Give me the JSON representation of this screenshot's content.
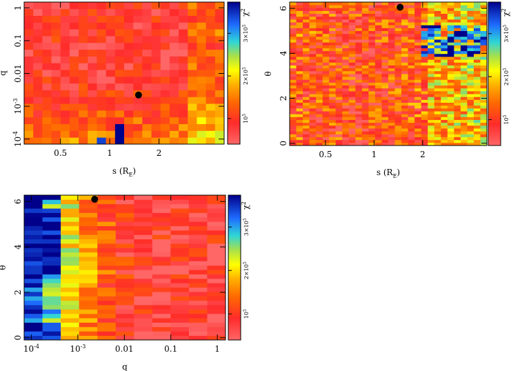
{
  "chart_data": [
    {
      "type": "heatmap",
      "id": "s-q",
      "xlabel": "s (R",
      "xlabel_sub": "E",
      "xlabel_close": ")",
      "ylabel": "q",
      "x_scale": "log",
      "y_scale": "log",
      "xlim": [
        0.3,
        5.0
      ],
      "ylim": [
        7e-05,
        1.5
      ],
      "x_ticks": [
        {
          "v": 0.5,
          "label": "0.5"
        },
        {
          "v": 1,
          "label": "1"
        },
        {
          "v": 2,
          "label": "2"
        }
      ],
      "y_ticks": [
        {
          "v": 1,
          "label": "1"
        },
        {
          "v": 0.1,
          "label": "0.1"
        },
        {
          "v": 0.01,
          "label": "0.01"
        },
        {
          "v": 0.001,
          "label": "10",
          "sup": "-3"
        },
        {
          "v": 0.0001,
          "label": "10",
          "sup": "-4"
        }
      ],
      "grid": {
        "nx": 22,
        "ny": 21
      },
      "best_fit": {
        "x": 1.5,
        "y": 0.0022
      },
      "seed": 11,
      "colorbar": {
        "title": "χ",
        "title_sup": "2",
        "ticks": [
          {
            "label": "10",
            "sup": "5"
          },
          {
            "label": "2×10",
            "sup": "5"
          },
          {
            "label": "3×10",
            "sup": "5"
          }
        ]
      }
    },
    {
      "type": "heatmap",
      "id": "s-theta",
      "xlabel": "s (R",
      "xlabel_sub": "E",
      "xlabel_close": ")",
      "ylabel": "θ",
      "x_scale": "log",
      "y_scale": "linear",
      "xlim": [
        0.3,
        5.0
      ],
      "ylim": [
        -0.1,
        6.28
      ],
      "x_ticks": [
        {
          "v": 0.5,
          "label": "0.5"
        },
        {
          "v": 1,
          "label": "1"
        },
        {
          "v": 2,
          "label": "2"
        }
      ],
      "y_ticks": [
        {
          "v": 0,
          "label": "0"
        },
        {
          "v": 2,
          "label": "2"
        },
        {
          "v": 4,
          "label": "4"
        },
        {
          "v": 6,
          "label": "6"
        }
      ],
      "grid": {
        "nx": 30,
        "ny": 50
      },
      "best_fit": {
        "x": 1.45,
        "y": 6.05
      },
      "seed": 27,
      "colorbar": {
        "title": "χ",
        "title_sup": "2",
        "ticks": [
          {
            "label": "10",
            "sup": "5"
          },
          {
            "label": "2×10",
            "sup": "5"
          },
          {
            "label": "3×10",
            "sup": "5"
          }
        ]
      }
    },
    {
      "type": "heatmap",
      "id": "q-theta",
      "xlabel": "q",
      "xlabel_sub": "",
      "xlabel_close": "",
      "ylabel": "θ",
      "x_scale": "log",
      "y_scale": "linear",
      "xlim": [
        7e-05,
        1.5
      ],
      "ylim": [
        -0.1,
        6.28
      ],
      "x_ticks": [
        {
          "v": 0.0001,
          "label": "10",
          "sup": "-4"
        },
        {
          "v": 0.001,
          "label": "10",
          "sup": "-3"
        },
        {
          "v": 0.01,
          "label": "0.01"
        },
        {
          "v": 0.1,
          "label": "0.1"
        },
        {
          "v": 1,
          "label": "1"
        }
      ],
      "y_ticks": [
        {
          "v": 0,
          "label": "0"
        },
        {
          "v": 2,
          "label": "2"
        },
        {
          "v": 4,
          "label": "4"
        },
        {
          "v": 6,
          "label": "6"
        }
      ],
      "grid": {
        "nx": 11,
        "ny": 33
      },
      "best_fit": {
        "x": 0.0023,
        "y": 6.1
      },
      "seed": 53,
      "colorbar": {
        "title": "χ",
        "title_sup": "2",
        "ticks": [
          {
            "label": "10",
            "sup": "5"
          },
          {
            "label": "2×10",
            "sup": "5"
          },
          {
            "label": "3×10",
            "sup": "5"
          }
        ]
      }
    }
  ]
}
